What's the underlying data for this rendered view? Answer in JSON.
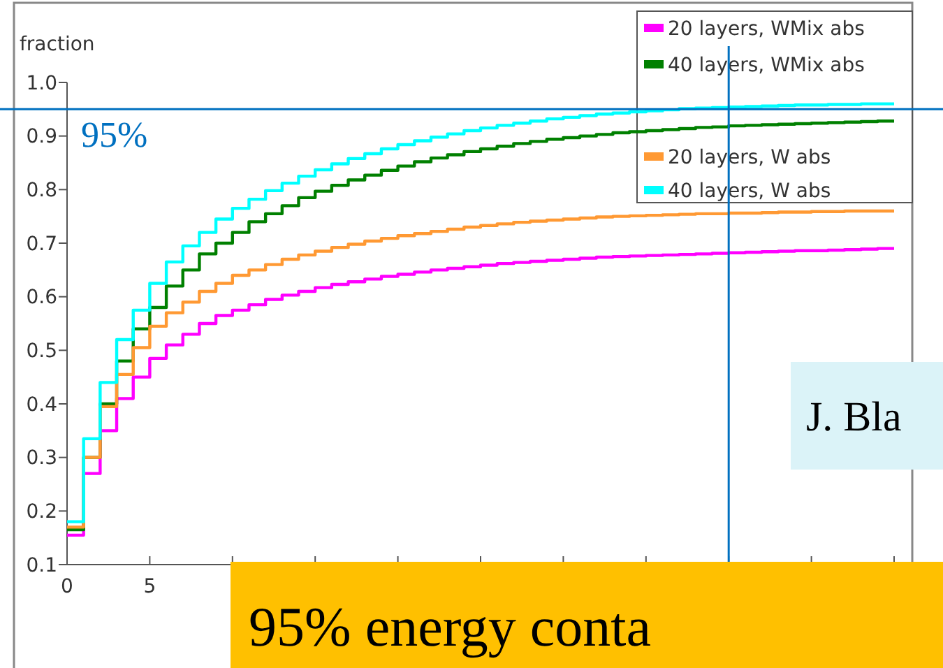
{
  "chart_data": {
    "type": "step",
    "ylabel": "fraction",
    "x": [
      0,
      1,
      2,
      3,
      4,
      5,
      6,
      7,
      8,
      9,
      10,
      11,
      12,
      13,
      14,
      15,
      16,
      17,
      18,
      19,
      20,
      21,
      22,
      23,
      24,
      25,
      26,
      27,
      28,
      29,
      30,
      31,
      32,
      33,
      34,
      35,
      36,
      37,
      38,
      39,
      40,
      41,
      42,
      43,
      44,
      45,
      46,
      47,
      48,
      49,
      50
    ],
    "series": [
      {
        "name": "20 layers, WMix abs",
        "color": "#ff00ff",
        "values": [
          0.155,
          0.27,
          0.35,
          0.41,
          0.45,
          0.485,
          0.51,
          0.53,
          0.55,
          0.565,
          0.575,
          0.585,
          0.595,
          0.603,
          0.61,
          0.617,
          0.623,
          0.628,
          0.633,
          0.638,
          0.642,
          0.646,
          0.65,
          0.653,
          0.656,
          0.659,
          0.662,
          0.664,
          0.666,
          0.668,
          0.67,
          0.672,
          0.674,
          0.675,
          0.676,
          0.677,
          0.678,
          0.679,
          0.68,
          0.681,
          0.682,
          0.683,
          0.684,
          0.685,
          0.686,
          0.686,
          0.687,
          0.688,
          0.689,
          0.69,
          0.69
        ]
      },
      {
        "name": "40 layers, WMix abs",
        "color": "#008000",
        "values": [
          0.165,
          0.3,
          0.4,
          0.48,
          0.54,
          0.58,
          0.62,
          0.65,
          0.68,
          0.7,
          0.72,
          0.74,
          0.755,
          0.77,
          0.785,
          0.797,
          0.808,
          0.818,
          0.827,
          0.836,
          0.844,
          0.852,
          0.859,
          0.865,
          0.871,
          0.876,
          0.881,
          0.886,
          0.89,
          0.894,
          0.897,
          0.9,
          0.903,
          0.906,
          0.908,
          0.91,
          0.912,
          0.914,
          0.916,
          0.917,
          0.919,
          0.92,
          0.921,
          0.922,
          0.923,
          0.924,
          0.925,
          0.926,
          0.927,
          0.928,
          0.928
        ]
      },
      {
        "name": "20 layers, W abs",
        "color": "#ff9933",
        "values": [
          0.17,
          0.3,
          0.395,
          0.455,
          0.505,
          0.545,
          0.57,
          0.59,
          0.61,
          0.625,
          0.64,
          0.65,
          0.66,
          0.67,
          0.678,
          0.685,
          0.692,
          0.698,
          0.704,
          0.709,
          0.714,
          0.718,
          0.722,
          0.726,
          0.73,
          0.733,
          0.736,
          0.739,
          0.741,
          0.743,
          0.745,
          0.747,
          0.749,
          0.75,
          0.751,
          0.752,
          0.753,
          0.754,
          0.755,
          0.755,
          0.756,
          0.756,
          0.757,
          0.758,
          0.758,
          0.759,
          0.759,
          0.76,
          0.76,
          0.76,
          0.76
        ]
      },
      {
        "name": "40 layers, W abs",
        "color": "#00ffff",
        "values": [
          0.18,
          0.335,
          0.44,
          0.52,
          0.575,
          0.625,
          0.665,
          0.695,
          0.72,
          0.745,
          0.765,
          0.782,
          0.798,
          0.812,
          0.825,
          0.837,
          0.848,
          0.858,
          0.867,
          0.876,
          0.884,
          0.891,
          0.898,
          0.904,
          0.91,
          0.915,
          0.92,
          0.924,
          0.928,
          0.932,
          0.935,
          0.938,
          0.941,
          0.943,
          0.945,
          0.947,
          0.949,
          0.951,
          0.952,
          0.953,
          0.954,
          0.955,
          0.956,
          0.957,
          0.958,
          0.958,
          0.959,
          0.959,
          0.96,
          0.96,
          0.96
        ]
      }
    ],
    "xlim": [
      0,
      50
    ],
    "xticks": [
      0,
      5,
      {
        "value": 10,
        "label": null
      },
      {
        "value": 15,
        "label": null
      },
      {
        "value": 20,
        "label": null
      },
      {
        "value": 25,
        "label": null
      },
      {
        "value": 30,
        "label": null
      },
      {
        "value": 35,
        "label": null
      },
      {
        "value": 40,
        "label": null
      },
      {
        "value": 45,
        "label": null
      },
      {
        "value": 50,
        "label": null
      }
    ],
    "ylim": [
      0.1,
      1.0
    ],
    "yticks": [
      0.1,
      0.2,
      0.3,
      0.4,
      0.5,
      0.6,
      0.7,
      0.8,
      0.9,
      {
        "value": 1.0,
        "label": "1.0"
      }
    ],
    "ref_lines": [
      {
        "axis": "y",
        "value": 0.95,
        "label": "95%",
        "color": "#0070c0"
      },
      {
        "axis": "x",
        "value": 40,
        "color": "#0070c0"
      }
    ],
    "annotations": [
      "J. Bla",
      "95% energy conta"
    ],
    "legend": "top right",
    "grid": false,
    "marker": "none",
    "line_style": "solid"
  }
}
